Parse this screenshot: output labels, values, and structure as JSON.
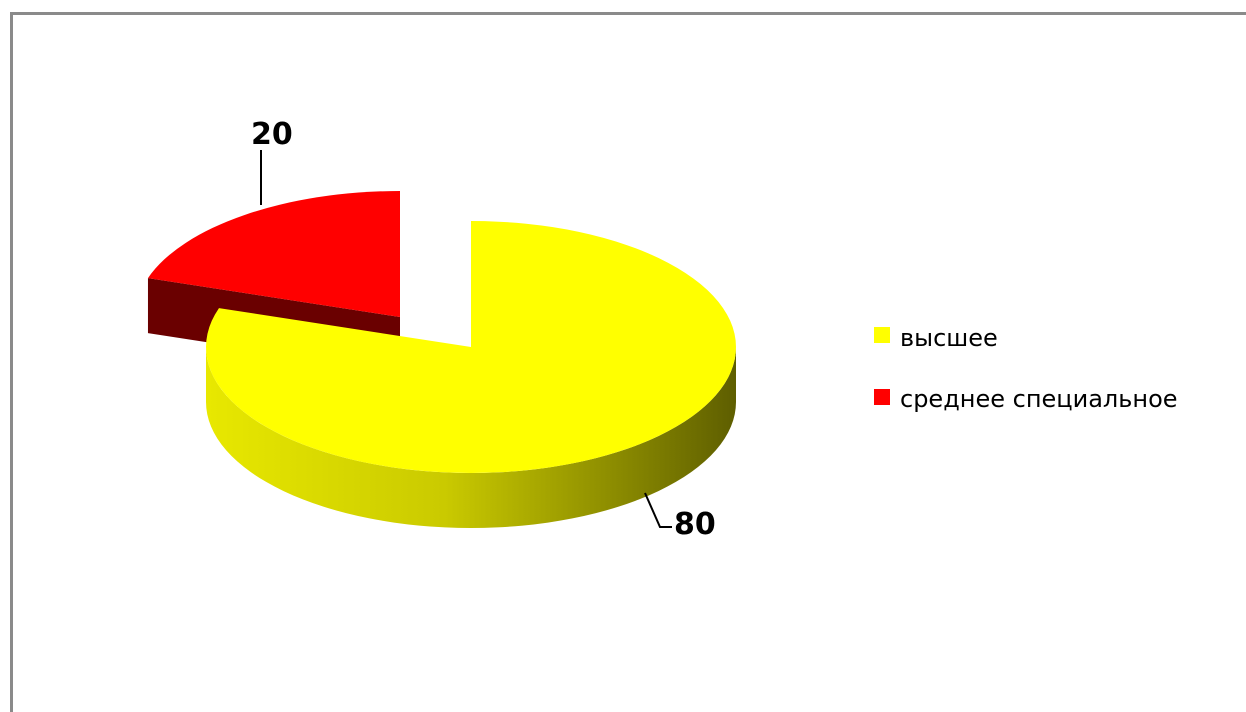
{
  "chart_data": {
    "type": "pie",
    "style": "3d-exploded",
    "title": "",
    "slices": [
      {
        "label": "высшее",
        "value": 80,
        "color": "#ffff00"
      },
      {
        "label": "среднее специальное",
        "value": 20,
        "color": "#ff0000"
      }
    ],
    "data_labels": [
      "80",
      "20"
    ],
    "legend": {
      "position": "right",
      "entries": [
        "высшее",
        "среднее специальное"
      ]
    }
  }
}
